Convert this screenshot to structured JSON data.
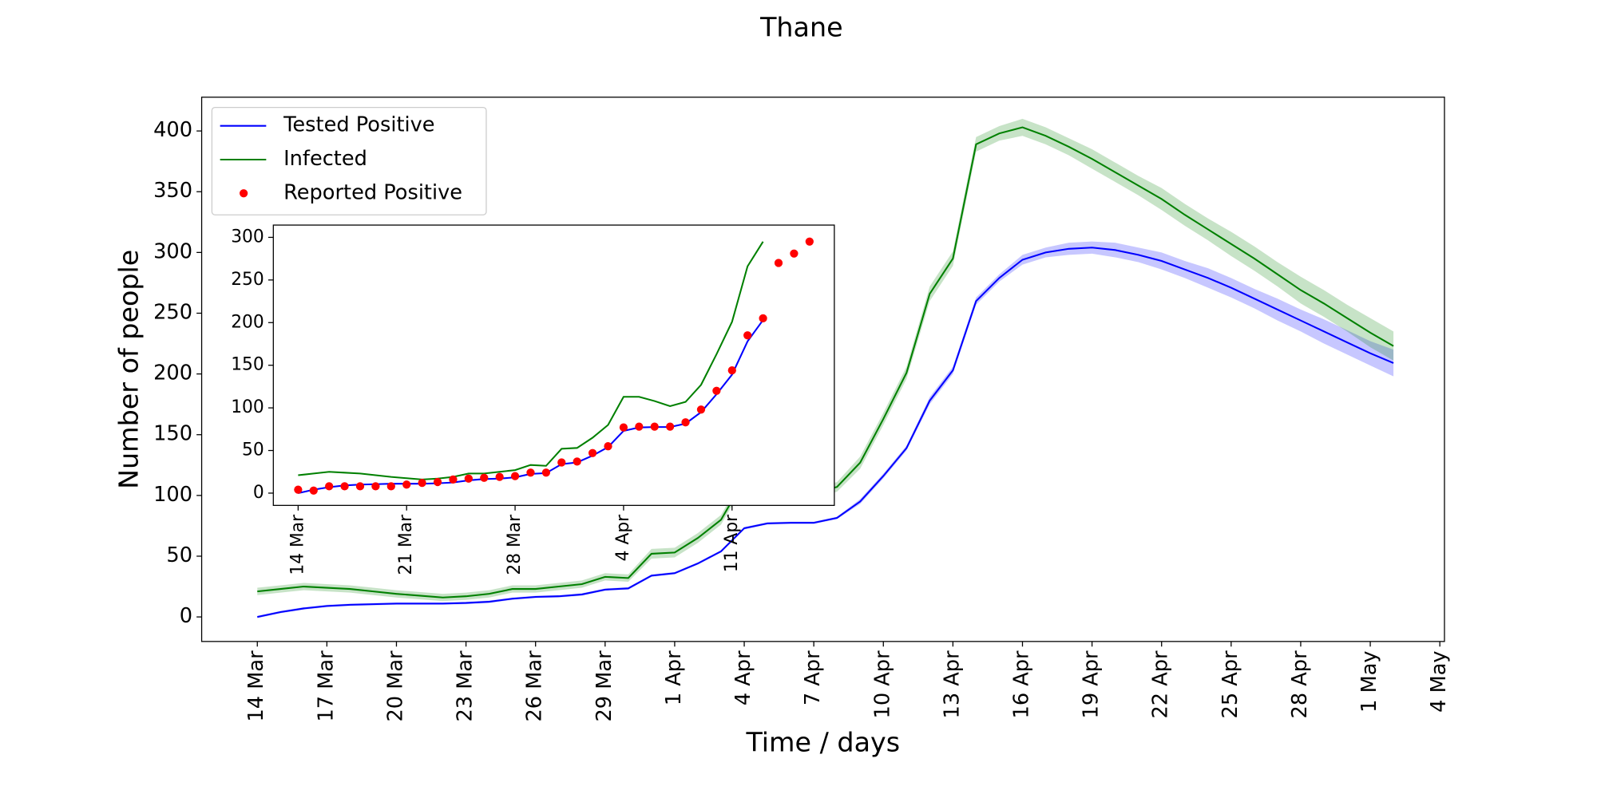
{
  "chart_data": [
    {
      "type": "line",
      "title": "Thane",
      "x_label": "Time / days",
      "y_label": "Number of people",
      "x": [
        0,
        1,
        2,
        3,
        4,
        5,
        6,
        7,
        8,
        9,
        10,
        11,
        12,
        13,
        14,
        15,
        16,
        17,
        18,
        19,
        20,
        21,
        22,
        23,
        24,
        25,
        26,
        27,
        28,
        29,
        30,
        31,
        32,
        33,
        34,
        35,
        36,
        37,
        38,
        39,
        40,
        41,
        42,
        43,
        44,
        45,
        46,
        47,
        48,
        49
      ],
      "xlim": [
        -2.4,
        51.2
      ],
      "xticks": [
        {
          "value": 0,
          "label": "14 Mar"
        },
        {
          "value": 3,
          "label": "17 Mar"
        },
        {
          "value": 6,
          "label": "20 Mar"
        },
        {
          "value": 9,
          "label": "23 Mar"
        },
        {
          "value": 12,
          "label": "26 Mar"
        },
        {
          "value": 15,
          "label": "29 Mar"
        },
        {
          "value": 18,
          "label": "1 Apr"
        },
        {
          "value": 21,
          "label": "4 Apr"
        },
        {
          "value": 24,
          "label": "7 Apr"
        },
        {
          "value": 27,
          "label": "10 Apr"
        },
        {
          "value": 30,
          "label": "13 Apr"
        },
        {
          "value": 33,
          "label": "16 Apr"
        },
        {
          "value": 36,
          "label": "19 Apr"
        },
        {
          "value": 39,
          "label": "22 Apr"
        },
        {
          "value": 42,
          "label": "25 Apr"
        },
        {
          "value": 45,
          "label": "28 Apr"
        },
        {
          "value": 48,
          "label": "1 May"
        },
        {
          "value": 51,
          "label": "4 May"
        }
      ],
      "ylim": [
        -20.2,
        427.8
      ],
      "yticks": [
        0,
        50,
        100,
        150,
        200,
        250,
        300,
        350,
        400
      ],
      "legend": "upper left",
      "series": [
        {
          "name": "Tested Positive",
          "color": "#0000ff",
          "values": [
            0,
            4,
            7,
            9,
            10,
            10.5,
            11,
            11,
            11,
            11.5,
            12.5,
            15,
            16.5,
            17,
            18.5,
            22.5,
            23.5,
            34,
            36,
            44,
            54,
            73,
            77,
            77.5,
            77.5,
            81.5,
            95,
            116,
            139,
            178,
            203,
            260,
            279,
            294,
            300,
            303,
            304,
            302,
            298,
            293,
            286,
            279,
            271,
            262,
            253,
            244,
            235,
            226,
            217,
            209
          ],
          "spread": [
            1,
            1,
            1,
            1,
            1,
            1,
            1,
            1,
            1,
            1,
            1,
            1,
            1,
            1,
            1,
            1,
            1,
            1,
            1,
            1,
            1,
            1,
            1,
            1,
            1,
            1,
            2,
            2,
            2,
            3,
            3,
            3,
            3,
            4,
            4,
            5,
            5,
            6,
            6,
            7,
            7,
            8,
            8,
            8,
            9,
            9,
            10,
            10,
            10,
            11
          ]
        },
        {
          "name": "Infected",
          "color": "#008000",
          "values": [
            21,
            23,
            25,
            24,
            23,
            21,
            19,
            17.5,
            16,
            17,
            19,
            23,
            23,
            25,
            27,
            33,
            32,
            52,
            53,
            65,
            80,
            113,
            113,
            108,
            102,
            107,
            127,
            163,
            201,
            266,
            295,
            389,
            398,
            403,
            396,
            387,
            377,
            366,
            355,
            344,
            331,
            319,
            307,
            295,
            282,
            269,
            258,
            246,
            234,
            223
          ],
          "spread": [
            3,
            3,
            3,
            3,
            3,
            3,
            3,
            3,
            3,
            3,
            3,
            3,
            3,
            3,
            3,
            3,
            3,
            4,
            4,
            4,
            4,
            4,
            4,
            4,
            4,
            4,
            5,
            5,
            5,
            6,
            6,
            6,
            6,
            7,
            7,
            7,
            8,
            8,
            8,
            9,
            9,
            9,
            10,
            10,
            10,
            11,
            11,
            11,
            12,
            12
          ]
        },
        {
          "name": "Reported Positive",
          "color": "#ff0000",
          "type": "scatter",
          "values": []
        }
      ]
    },
    {
      "type": "line",
      "x": [
        0,
        1,
        2,
        3,
        4,
        5,
        6,
        7,
        8,
        9,
        10,
        11,
        12,
        13,
        14,
        15,
        16,
        17,
        18,
        19,
        20,
        21,
        22,
        23,
        24,
        25,
        26,
        27,
        28,
        29,
        30,
        31,
        32,
        33
      ],
      "xlim": [
        -1.6,
        34.6
      ],
      "xticks": [
        {
          "value": 0,
          "label": "14 Mar"
        },
        {
          "value": 7,
          "label": "21 Mar"
        },
        {
          "value": 14,
          "label": "28 Mar"
        },
        {
          "value": 21,
          "label": "4 Apr"
        },
        {
          "value": 28,
          "label": "11 Apr"
        }
      ],
      "ylim": [
        -14.4,
        314.4
      ],
      "yticks": [
        0,
        50,
        100,
        150,
        200,
        250,
        300
      ],
      "series": [
        {
          "color": "#0000ff",
          "values": [
            0,
            4,
            7,
            9,
            10,
            10.5,
            11,
            11,
            11,
            11.5,
            12.5,
            15,
            16.5,
            17,
            18.5,
            22.5,
            23.5,
            34,
            36,
            44,
            54,
            73,
            77,
            77.5,
            77.5,
            81.5,
            95,
            116,
            139,
            178,
            203,
            null,
            null,
            null
          ]
        },
        {
          "color": "#008000",
          "values": [
            21,
            23,
            25,
            24,
            23,
            21,
            19,
            17.5,
            16,
            17,
            19,
            23,
            23,
            25,
            27,
            33,
            32,
            52,
            53,
            65,
            80,
            113,
            113,
            108,
            102,
            107,
            127,
            163,
            201,
            266,
            295,
            null,
            null,
            null
          ]
        },
        {
          "color": "#ff0000",
          "type": "scatter",
          "values": [
            4,
            3,
            8,
            8,
            8,
            8,
            8,
            10,
            12,
            13,
            16,
            17,
            18,
            19,
            20,
            24,
            24,
            36,
            37,
            47,
            55,
            77,
            78,
            78,
            78,
            83,
            98,
            120,
            144,
            185,
            205,
            270,
            281,
            295
          ]
        }
      ]
    }
  ]
}
